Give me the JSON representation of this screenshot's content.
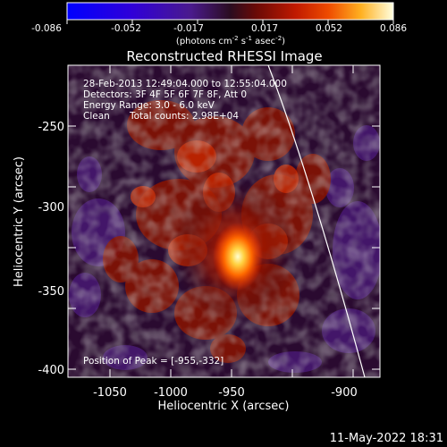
{
  "colorbar": {
    "ticks": [
      "-0.086",
      "-0.052",
      "-0.017",
      "0.017",
      "0.052",
      "0.086"
    ],
    "units_pre": "(photons cm",
    "units_sup1": "-2",
    "units_mid1": " s",
    "units_sup2": "-1",
    "units_mid2": " asec",
    "units_sup3": "-2",
    "units_post": ")"
  },
  "title": "Reconstructed RHESSI Image",
  "info": {
    "time_range": "28-Feb-2013 12:49:04.000 to 12:55:04.000",
    "detectors": "Detectors: 3F 4F 5F 6F 7F 8F, Att 0",
    "energy": "Energy Range: 3.0 - 6.0 keV",
    "method": "Clean",
    "counts": "Total counts: 2.98E+04",
    "peak": "Position of Peak = [-955,-332]"
  },
  "axes": {
    "xlabel": "Heliocentric X (arcsec)",
    "ylabel": "Heliocentric Y (arcsec)",
    "xticks": [
      "-1050",
      "-1000",
      "-950",
      "-900"
    ],
    "yticks": [
      "-250",
      "-300",
      "-350",
      "-400"
    ]
  },
  "timestamp": "11-May-2022 18:31"
}
